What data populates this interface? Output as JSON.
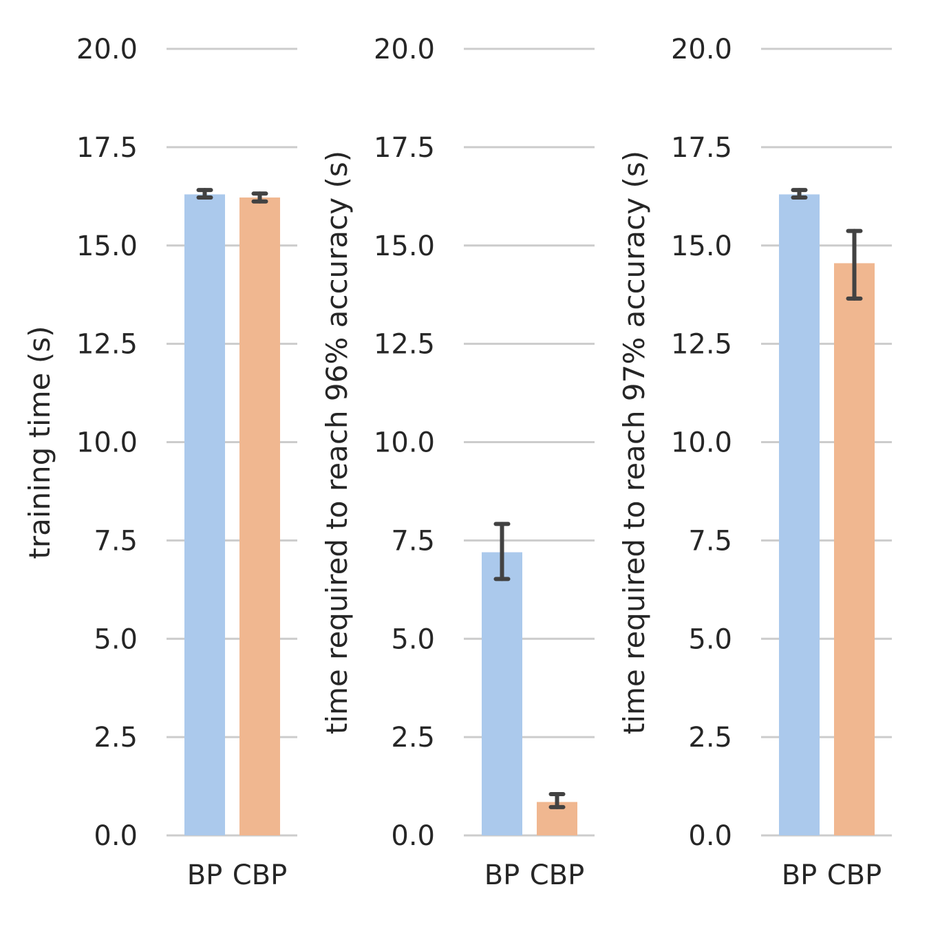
{
  "chart_data": [
    {
      "type": "bar",
      "ylabel": "training time (s)",
      "categories": [
        "BP",
        "CBP"
      ],
      "series": [
        {
          "values": [
            16.3,
            16.22
          ],
          "err_low": [
            16.22,
            16.12
          ],
          "err_high": [
            16.41,
            16.32
          ]
        }
      ],
      "colors": [
        "#abc9ec",
        "#f0b790"
      ],
      "ylim": [
        0,
        20
      ],
      "yticks": [
        "0.0",
        "2.5",
        "5.0",
        "7.5",
        "10.0",
        "12.5",
        "15.0",
        "17.5",
        "20.0"
      ],
      "grid": true
    },
    {
      "type": "bar",
      "ylabel": "time required to reach 96% accuracy (s)",
      "categories": [
        "BP",
        "CBP"
      ],
      "series": [
        {
          "values": [
            7.2,
            0.85
          ],
          "err_low": [
            6.52,
            0.72
          ],
          "err_high": [
            7.92,
            1.05
          ]
        }
      ],
      "colors": [
        "#abc9ec",
        "#f0b790"
      ],
      "ylim": [
        0,
        20
      ],
      "yticks": [
        "0.0",
        "2.5",
        "5.0",
        "7.5",
        "10.0",
        "12.5",
        "15.0",
        "17.5",
        "20.0"
      ],
      "grid": true
    },
    {
      "type": "bar",
      "ylabel": "time required to reach 97% accuracy (s)",
      "categories": [
        "BP",
        "CBP"
      ],
      "series": [
        {
          "values": [
            16.3,
            14.55
          ],
          "err_low": [
            16.22,
            13.65
          ],
          "err_high": [
            16.41,
            15.37
          ]
        }
      ],
      "colors": [
        "#abc9ec",
        "#f0b790"
      ],
      "ylim": [
        0,
        20
      ],
      "yticks": [
        "0.0",
        "2.5",
        "5.0",
        "7.5",
        "10.0",
        "12.5",
        "15.0",
        "17.5",
        "20.0"
      ],
      "grid": true
    }
  ]
}
